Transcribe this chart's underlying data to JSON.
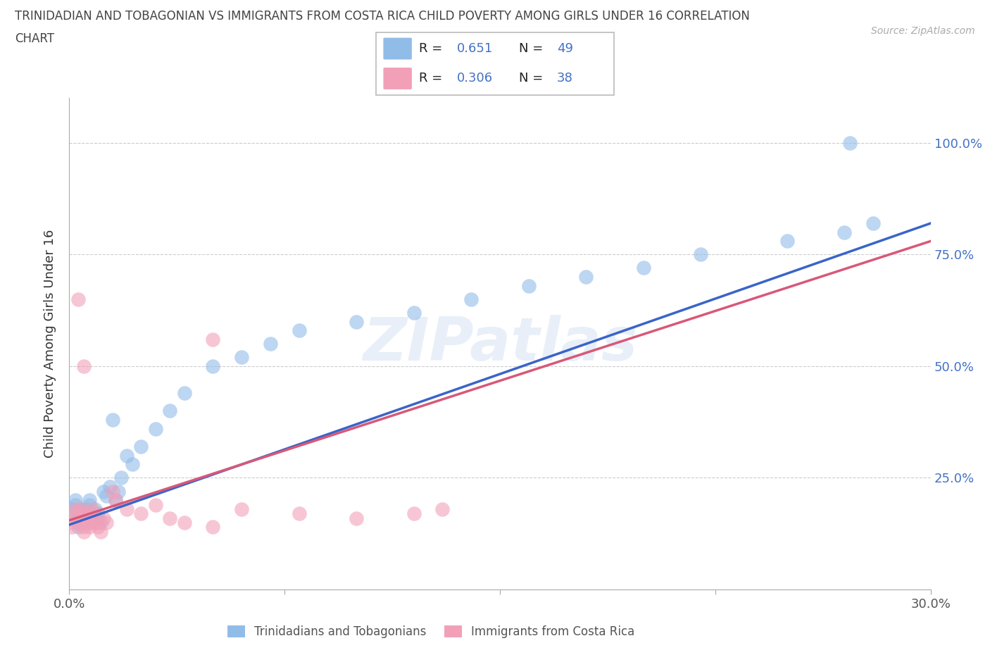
{
  "title_line1": "TRINIDADIAN AND TOBAGONIAN VS IMMIGRANTS FROM COSTA RICA CHILD POVERTY AMONG GIRLS UNDER 16 CORRELATION",
  "title_line2": "CHART",
  "source_text": "Source: ZipAtlas.com",
  "ylabel": "Child Poverty Among Girls Under 16",
  "xlim": [
    0.0,
    0.3
  ],
  "ylim": [
    0.0,
    1.1
  ],
  "r_blue": 0.651,
  "n_blue": 49,
  "r_pink": 0.306,
  "n_pink": 38,
  "blue_color": "#92bce8",
  "pink_color": "#f2a0b8",
  "line_blue": "#3a64c8",
  "line_pink": "#d85878",
  "watermark": "ZIPatlas",
  "legend_label_blue": "Trinidadians and Tobagonians",
  "legend_label_pink": "Immigrants from Costa Rica",
  "blue_x": [
    0.001,
    0.001,
    0.002,
    0.002,
    0.003,
    0.003,
    0.003,
    0.004,
    0.004,
    0.005,
    0.005,
    0.006,
    0.006,
    0.007,
    0.007,
    0.008,
    0.008,
    0.009,
    0.01,
    0.01,
    0.011,
    0.012,
    0.013,
    0.014,
    0.015,
    0.016,
    0.017,
    0.018,
    0.02,
    0.022,
    0.025,
    0.03,
    0.035,
    0.04,
    0.05,
    0.06,
    0.07,
    0.08,
    0.1,
    0.12,
    0.14,
    0.16,
    0.18,
    0.2,
    0.22,
    0.25,
    0.27,
    0.28,
    0.272
  ],
  "blue_y": [
    0.18,
    0.17,
    0.2,
    0.19,
    0.16,
    0.15,
    0.14,
    0.17,
    0.18,
    0.16,
    0.15,
    0.18,
    0.17,
    0.2,
    0.19,
    0.16,
    0.15,
    0.18,
    0.17,
    0.16,
    0.15,
    0.22,
    0.21,
    0.23,
    0.38,
    0.2,
    0.22,
    0.25,
    0.3,
    0.28,
    0.32,
    0.36,
    0.4,
    0.44,
    0.5,
    0.52,
    0.55,
    0.58,
    0.6,
    0.62,
    0.65,
    0.68,
    0.7,
    0.72,
    0.75,
    0.78,
    0.8,
    0.82,
    1.0
  ],
  "pink_x": [
    0.001,
    0.001,
    0.002,
    0.002,
    0.003,
    0.003,
    0.004,
    0.004,
    0.005,
    0.005,
    0.006,
    0.006,
    0.007,
    0.007,
    0.008,
    0.008,
    0.009,
    0.01,
    0.01,
    0.011,
    0.012,
    0.013,
    0.015,
    0.016,
    0.02,
    0.025,
    0.03,
    0.035,
    0.04,
    0.05,
    0.06,
    0.08,
    0.1,
    0.13,
    0.05,
    0.003,
    0.005,
    0.12
  ],
  "pink_y": [
    0.15,
    0.14,
    0.18,
    0.17,
    0.16,
    0.15,
    0.18,
    0.17,
    0.14,
    0.13,
    0.17,
    0.16,
    0.15,
    0.14,
    0.18,
    0.17,
    0.16,
    0.15,
    0.14,
    0.13,
    0.16,
    0.15,
    0.22,
    0.2,
    0.18,
    0.17,
    0.19,
    0.16,
    0.15,
    0.14,
    0.18,
    0.17,
    0.16,
    0.18,
    0.56,
    0.65,
    0.5,
    0.17
  ],
  "line_blue_x0": 0.0,
  "line_blue_y0": 0.145,
  "line_blue_x1": 0.3,
  "line_blue_y1": 0.82,
  "line_pink_x0": 0.0,
  "line_pink_y0": 0.155,
  "line_pink_x1": 0.3,
  "line_pink_y1": 0.78
}
